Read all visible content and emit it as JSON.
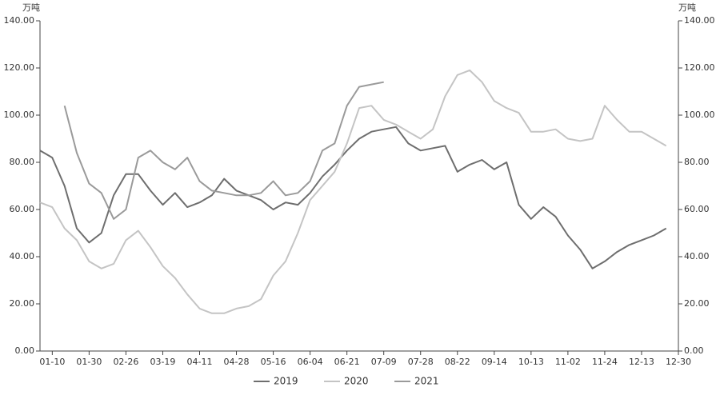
{
  "chart_data": {
    "type": "line",
    "y_unit": "万吨",
    "y2_unit": "万吨",
    "categories": [
      null,
      "01-10",
      null,
      null,
      "01-30",
      null,
      null,
      "02-26",
      null,
      null,
      "03-19",
      null,
      null,
      "04-11",
      null,
      null,
      "04-28",
      null,
      null,
      "05-16",
      null,
      null,
      "06-04",
      null,
      null,
      "06-21",
      null,
      null,
      "07-09",
      null,
      null,
      "07-28",
      null,
      null,
      "08-22",
      null,
      null,
      "09-14",
      null,
      null,
      "10-13",
      null,
      null,
      "11-02",
      null,
      null,
      "11-24",
      null,
      null,
      "12-13",
      null,
      null,
      "12-30"
    ],
    "series": [
      {
        "name": "2019",
        "color": "#6e6e6e",
        "values": [
          85,
          82,
          70,
          52,
          46,
          50,
          66,
          75,
          75,
          68,
          62,
          67,
          61,
          63,
          66,
          73,
          68,
          66,
          64,
          60,
          63,
          62,
          67,
          74,
          79,
          85,
          90,
          93,
          94,
          95,
          88,
          85,
          86,
          87,
          76,
          79,
          81,
          77,
          80,
          62,
          56,
          61,
          57,
          49,
          43,
          35,
          38,
          42,
          45,
          47,
          49,
          52,
          null
        ]
      },
      {
        "name": "2020",
        "color": "#c4c4c4",
        "values": [
          63,
          61,
          52,
          47,
          38,
          35,
          37,
          47,
          51,
          44,
          36,
          31,
          24,
          18,
          16,
          16,
          18,
          19,
          22,
          32,
          38,
          50,
          64,
          70,
          76,
          88,
          103,
          104,
          98,
          96,
          93,
          90,
          94,
          108,
          117,
          119,
          114,
          106,
          103,
          101,
          93,
          93,
          94,
          90,
          89,
          90,
          104,
          98,
          93,
          93,
          90,
          87,
          null
        ]
      },
      {
        "name": "2021",
        "color": "#9a9a9a",
        "values": [
          null,
          null,
          104,
          84,
          71,
          67,
          56,
          60,
          82,
          85,
          80,
          77,
          82,
          72,
          68,
          67,
          66,
          66,
          67,
          72,
          66,
          67,
          72,
          85,
          88,
          104,
          112,
          113,
          114,
          null,
          null,
          null,
          null,
          null,
          null,
          null,
          null,
          null,
          null,
          null,
          null,
          null,
          null,
          null,
          null,
          null,
          null,
          null,
          null,
          null,
          null,
          null,
          null
        ]
      }
    ],
    "ylim": [
      0,
      140
    ],
    "yticks": [
      {
        "value": 0,
        "label": "0.00"
      },
      {
        "value": 20,
        "label": "20.00"
      },
      {
        "value": 40,
        "label": "40.00"
      },
      {
        "value": 60,
        "label": "60.00"
      },
      {
        "value": 80,
        "label": "80.00"
      },
      {
        "value": 100,
        "label": "100.00"
      },
      {
        "value": 120,
        "label": "120.00"
      },
      {
        "value": 140,
        "label": "140.00"
      }
    ],
    "y2lim": [
      0,
      140
    ],
    "y2ticks": [
      {
        "value": 0,
        "label": "0.00"
      },
      {
        "value": 20,
        "label": "20.00"
      },
      {
        "value": 40,
        "label": "40.00"
      },
      {
        "value": 60,
        "label": "60.00"
      },
      {
        "value": 80,
        "label": "80.00"
      },
      {
        "value": 100,
        "label": "100.00"
      },
      {
        "value": 120,
        "label": "120.00"
      },
      {
        "value": 140,
        "label": "140.00"
      }
    ],
    "grid": false,
    "legend": "bottom"
  }
}
